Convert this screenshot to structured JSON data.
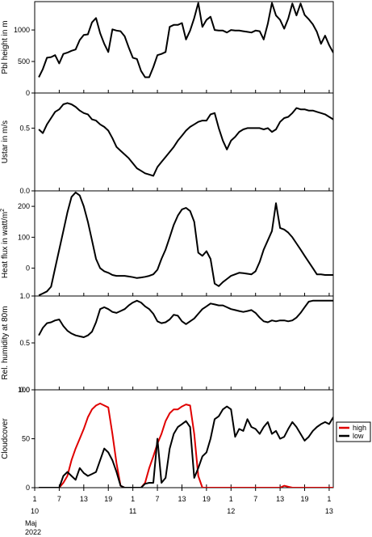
{
  "chart_data": [
    {
      "type": "line",
      "ylabel": "Pbl height in m",
      "ylim": [
        0,
        1450
      ],
      "yticks": [
        0,
        500,
        1000
      ],
      "ytick_labels": [
        "0",
        "500",
        "1000"
      ],
      "series": [
        {
          "color": "#000000",
          "x": [
            1,
            2,
            3,
            4,
            5,
            6,
            7,
            8,
            9,
            10,
            11,
            12,
            13,
            14,
            15,
            16,
            17,
            18,
            19,
            20,
            21,
            22,
            23,
            24,
            25,
            26,
            27,
            28,
            29,
            30,
            31,
            32,
            33,
            34,
            35,
            36,
            37,
            38,
            39,
            40,
            41,
            42,
            43,
            44,
            45,
            46,
            47,
            48,
            49,
            50,
            51,
            52,
            53,
            54,
            55,
            56,
            57,
            58,
            59,
            60,
            61,
            62,
            63,
            64,
            65,
            66,
            67,
            68,
            69,
            70,
            71,
            72,
            73
          ],
          "y": [
            250,
            380,
            560,
            570,
            600,
            470,
            620,
            640,
            670,
            690,
            840,
            920,
            930,
            1120,
            1190,
            950,
            780,
            650,
            1010,
            990,
            980,
            900,
            720,
            560,
            540,
            350,
            250,
            250,
            410,
            600,
            620,
            650,
            1050,
            1080,
            1080,
            1110,
            850,
            990,
            1190,
            1430,
            1050,
            1160,
            1210,
            1000,
            990,
            990,
            960,
            1000,
            990,
            990,
            980,
            970,
            960,
            990,
            980,
            850,
            1100,
            1430,
            1230,
            1160,
            1020,
            1180,
            1420,
            1230,
            1420,
            1240,
            1170,
            1090,
            970,
            780,
            910,
            760,
            640
          ]
        }
      ]
    },
    {
      "type": "line",
      "ylabel": "Ustar in m/s",
      "ylim": [
        0,
        0.78
      ],
      "yticks": [
        0,
        0.5
      ],
      "ytick_labels": [
        "0.0",
        "0.5"
      ],
      "series": [
        {
          "color": "#000000",
          "x": [
            1,
            2,
            3,
            4,
            5,
            6,
            7,
            8,
            9,
            10,
            11,
            12,
            13,
            14,
            15,
            16,
            17,
            18,
            19,
            20,
            21,
            22,
            23,
            24,
            25,
            26,
            27,
            28,
            29,
            30,
            31,
            32,
            33,
            34,
            35,
            36,
            37,
            38,
            39,
            40,
            41,
            42,
            43,
            44,
            45,
            46,
            47,
            48,
            49,
            50,
            51,
            52,
            53,
            54,
            55,
            56,
            57,
            58,
            59,
            60,
            61,
            62,
            63,
            64,
            65,
            66,
            67,
            68,
            69,
            70,
            71,
            72,
            73
          ],
          "y": [
            0.49,
            0.46,
            0.53,
            0.58,
            0.63,
            0.65,
            0.69,
            0.7,
            0.69,
            0.67,
            0.64,
            0.62,
            0.61,
            0.57,
            0.56,
            0.53,
            0.51,
            0.48,
            0.42,
            0.35,
            0.32,
            0.29,
            0.26,
            0.22,
            0.18,
            0.16,
            0.14,
            0.13,
            0.12,
            0.19,
            0.23,
            0.27,
            0.31,
            0.35,
            0.4,
            0.44,
            0.48,
            0.51,
            0.53,
            0.55,
            0.56,
            0.56,
            0.61,
            0.62,
            0.5,
            0.4,
            0.33,
            0.4,
            0.43,
            0.47,
            0.49,
            0.5,
            0.5,
            0.5,
            0.5,
            0.49,
            0.5,
            0.47,
            0.49,
            0.55,
            0.58,
            0.59,
            0.62,
            0.66,
            0.65,
            0.65,
            0.64,
            0.64,
            0.63,
            0.62,
            0.61,
            0.59,
            0.57
          ]
        }
      ]
    },
    {
      "type": "line",
      "ylabel": "Heat flux in watt/m",
      "ylabel_sup": "2",
      "ylim": [
        -90,
        250
      ],
      "yticks": [
        0,
        100,
        200
      ],
      "ytick_labels": [
        "0",
        "100",
        "200"
      ],
      "series": [
        {
          "color": "#000000",
          "x": [
            1,
            2,
            3,
            4,
            5,
            6,
            7,
            8,
            9,
            10,
            11,
            12,
            13,
            14,
            15,
            16,
            17,
            18,
            19,
            20,
            21,
            22,
            23,
            24,
            25,
            26,
            27,
            28,
            29,
            30,
            31,
            32,
            33,
            34,
            35,
            36,
            37,
            38,
            39,
            40,
            41,
            42,
            43,
            44,
            45,
            46,
            47,
            48,
            49,
            50,
            51,
            52,
            53,
            54,
            55,
            56,
            57,
            58,
            59,
            60,
            61,
            62,
            63,
            64,
            65,
            66,
            67,
            68,
            69,
            70,
            71,
            72,
            73
          ],
          "y": [
            -88,
            -82,
            -75,
            -60,
            0,
            60,
            120,
            180,
            230,
            245,
            235,
            200,
            150,
            90,
            30,
            0,
            -10,
            -15,
            -22,
            -25,
            -25,
            -25,
            -27,
            -29,
            -32,
            -30,
            -28,
            -25,
            -20,
            -5,
            30,
            60,
            100,
            140,
            170,
            190,
            195,
            185,
            150,
            50,
            40,
            55,
            30,
            -50,
            -58,
            -45,
            -35,
            -25,
            -20,
            -15,
            -16,
            -18,
            -20,
            -10,
            20,
            60,
            90,
            120,
            210,
            130,
            125,
            115,
            100,
            80,
            60,
            40,
            20,
            0,
            -20,
            -20,
            -22,
            -22,
            -22
          ]
        }
      ]
    },
    {
      "type": "line",
      "ylabel": "Rel. humidity at 80m",
      "ylim": [
        0,
        1.0
      ],
      "yticks": [
        0,
        0.5,
        1.0
      ],
      "ytick_labels": [
        "0.0",
        "0.5",
        "1.0"
      ],
      "series": [
        {
          "color": "#000000",
          "x": [
            1,
            2,
            3,
            4,
            5,
            6,
            7,
            8,
            9,
            10,
            11,
            12,
            13,
            14,
            15,
            16,
            17,
            18,
            19,
            20,
            21,
            22,
            23,
            24,
            25,
            26,
            27,
            28,
            29,
            30,
            31,
            32,
            33,
            34,
            35,
            36,
            37,
            38,
            39,
            40,
            41,
            42,
            43,
            44,
            45,
            46,
            47,
            48,
            49,
            50,
            51,
            52,
            53,
            54,
            55,
            56,
            57,
            58,
            59,
            60,
            61,
            62,
            63,
            64,
            65,
            66,
            67,
            68,
            69,
            70,
            71,
            72,
            73
          ],
          "y": [
            0.58,
            0.66,
            0.71,
            0.72,
            0.74,
            0.75,
            0.68,
            0.63,
            0.6,
            0.58,
            0.57,
            0.56,
            0.58,
            0.62,
            0.72,
            0.86,
            0.88,
            0.86,
            0.83,
            0.82,
            0.84,
            0.86,
            0.9,
            0.93,
            0.95,
            0.93,
            0.89,
            0.86,
            0.81,
            0.73,
            0.71,
            0.72,
            0.75,
            0.8,
            0.79,
            0.73,
            0.7,
            0.73,
            0.76,
            0.81,
            0.86,
            0.89,
            0.92,
            0.91,
            0.9,
            0.9,
            0.88,
            0.86,
            0.85,
            0.84,
            0.83,
            0.84,
            0.85,
            0.82,
            0.77,
            0.73,
            0.72,
            0.74,
            0.73,
            0.74,
            0.74,
            0.73,
            0.74,
            0.77,
            0.82,
            0.88,
            0.94,
            0.95,
            0.95,
            0.95,
            0.95,
            0.95,
            0.95
          ]
        }
      ]
    },
    {
      "type": "line",
      "ylabel": "Cloudcover",
      "ylim": [
        0,
        100
      ],
      "yticks": [
        0,
        50,
        100
      ],
      "ytick_labels": [
        "0",
        "50",
        "100"
      ],
      "legend": {
        "position": "right",
        "entries": [
          "high",
          "low"
        ]
      },
      "series": [
        {
          "name": "high",
          "color": "#e00000",
          "x": [
            1,
            2,
            3,
            4,
            5,
            6,
            7,
            8,
            9,
            10,
            11,
            12,
            13,
            14,
            15,
            16,
            17,
            18,
            19,
            20,
            21,
            22,
            23,
            24,
            25,
            26,
            27,
            28,
            29,
            30,
            31,
            32,
            33,
            34,
            35,
            36,
            37,
            38,
            39,
            40,
            41,
            42,
            43,
            44,
            45,
            46,
            47,
            48,
            49,
            50,
            51,
            52,
            53,
            54,
            55,
            56,
            57,
            58,
            59,
            60,
            61,
            62,
            63,
            64,
            65,
            66,
            67,
            68,
            69,
            70,
            71,
            72,
            73
          ],
          "y": [
            0,
            0,
            0,
            0,
            0,
            0,
            5,
            12,
            28,
            40,
            50,
            60,
            72,
            80,
            84,
            86,
            84,
            82,
            55,
            25,
            2,
            0,
            0,
            0,
            0,
            0,
            5,
            20,
            32,
            45,
            55,
            68,
            76,
            80,
            80,
            83,
            85,
            84,
            55,
            12,
            0,
            0,
            0,
            0,
            0,
            0,
            0,
            0,
            0,
            0,
            0,
            0,
            0,
            0,
            0,
            0,
            0,
            0,
            0,
            0,
            2,
            1,
            0,
            0,
            0,
            0,
            0,
            0,
            0,
            0,
            0,
            0,
            0
          ]
        },
        {
          "name": "low",
          "color": "#000000",
          "x": [
            1,
            2,
            3,
            4,
            5,
            6,
            7,
            8,
            9,
            10,
            11,
            12,
            13,
            14,
            15,
            16,
            17,
            18,
            19,
            20,
            21,
            22,
            23,
            24,
            25,
            26,
            27,
            28,
            29,
            30,
            31,
            32,
            33,
            34,
            35,
            36,
            37,
            38,
            39,
            40,
            41,
            42,
            43,
            44,
            45,
            46,
            47,
            48,
            49,
            50,
            51,
            52,
            53,
            54,
            55,
            56,
            57,
            58,
            59,
            60,
            61,
            62,
            63,
            64,
            65,
            66,
            67,
            68,
            69,
            70,
            71,
            72,
            73
          ],
          "y": [
            0,
            0,
            0,
            0,
            0,
            0,
            12,
            16,
            12,
            8,
            20,
            15,
            12,
            14,
            16,
            28,
            40,
            36,
            28,
            16,
            2,
            0,
            0,
            0,
            0,
            0,
            4,
            5,
            5,
            50,
            5,
            10,
            40,
            55,
            62,
            65,
            68,
            62,
            10,
            20,
            32,
            36,
            50,
            70,
            73,
            80,
            83,
            80,
            52,
            60,
            58,
            70,
            62,
            60,
            55,
            62,
            67,
            55,
            58,
            50,
            52,
            60,
            67,
            62,
            55,
            48,
            52,
            58,
            62,
            65,
            67,
            65,
            72
          ]
        }
      ]
    }
  ],
  "x_axis": {
    "xlim": [
      0,
      73
    ],
    "ticks": [
      0,
      6,
      12,
      18,
      24,
      30,
      36,
      42,
      48,
      54,
      60,
      66,
      72
    ],
    "tick_labels": [
      "1",
      "7",
      "13",
      "19",
      "1",
      "7",
      "13",
      "19",
      "1",
      "7",
      "13",
      "19",
      "1"
    ],
    "day_labels": [
      {
        "x": 0,
        "label": "10"
      },
      {
        "x": 24,
        "label": "11"
      },
      {
        "x": 48,
        "label": "12"
      },
      {
        "x": 72,
        "label": "13"
      }
    ],
    "month_label": "Maj",
    "year_label": "2022"
  }
}
